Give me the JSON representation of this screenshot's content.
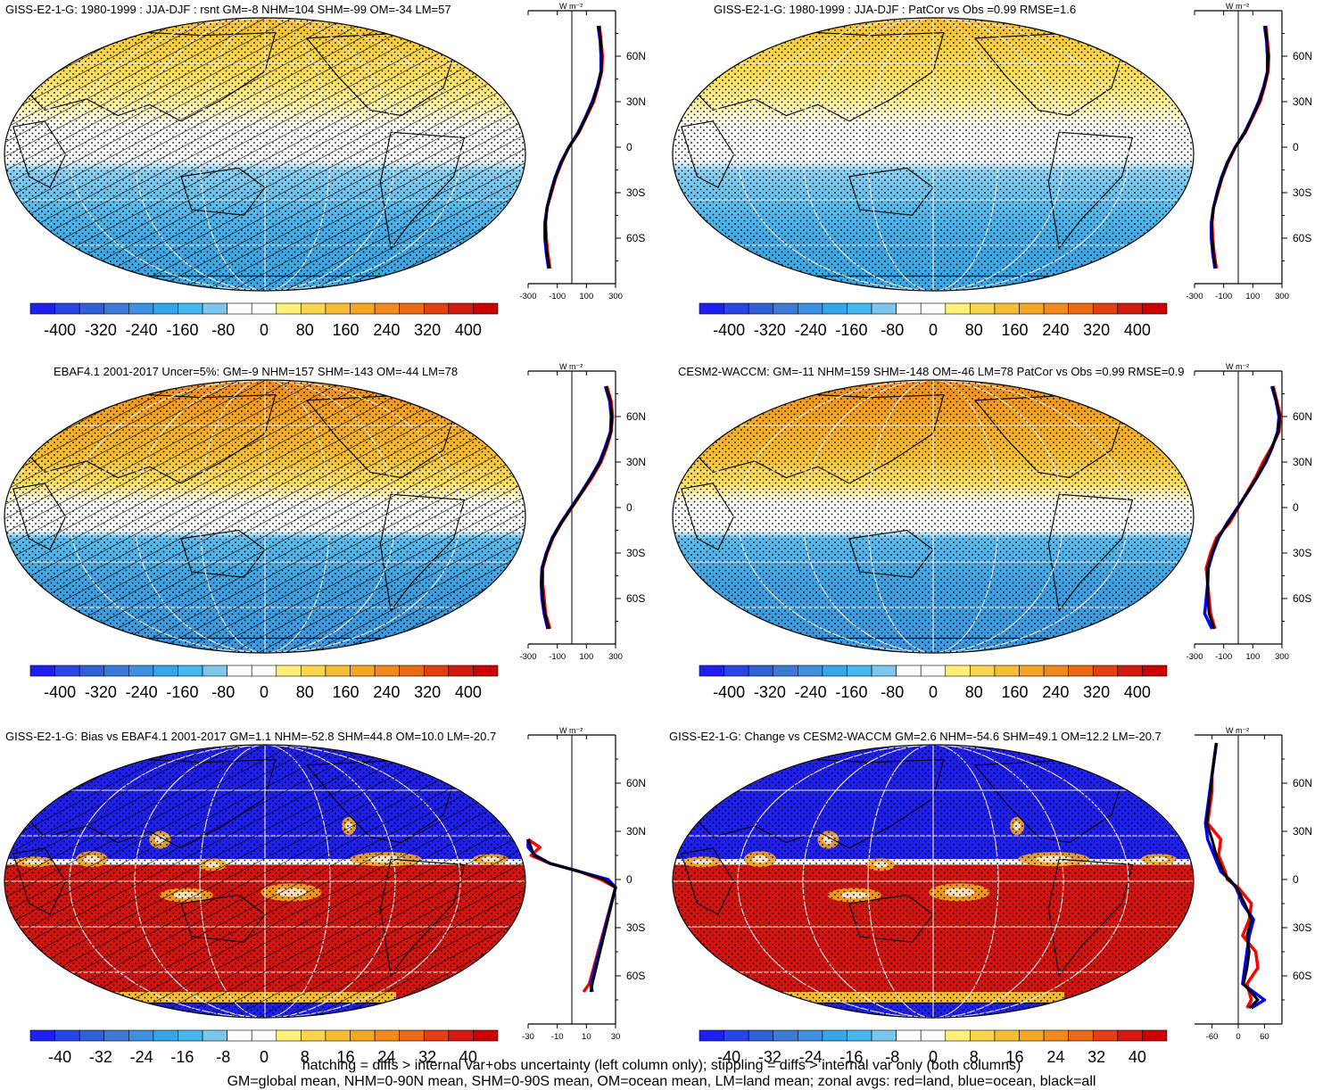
{
  "colors": {
    "land": "#ff0000",
    "ocean": "#0000ff",
    "all": "#000000",
    "abs_scale": [
      "#1f1ff0",
      "#2a45e6",
      "#3060d8",
      "#3c7ad6",
      "#3f90e0",
      "#35a6ea",
      "#45b6ee",
      "#7cc6ee",
      "#ffffff",
      "#ffffff",
      "#fff07a",
      "#f8d54c",
      "#f6bd32",
      "#f5a623",
      "#f08a1c",
      "#ea6a16",
      "#e24012",
      "#d21a10",
      "#cc0000"
    ],
    "diff_scale": [
      "#1f1ff0",
      "#2a45e6",
      "#3060d8",
      "#3c7ad6",
      "#3f90e0",
      "#35a6ea",
      "#45b6ee",
      "#7cc6ee",
      "#ffffff",
      "#ffffff",
      "#fff07a",
      "#f8d54c",
      "#f6bd32",
      "#f5a623",
      "#f08a1c",
      "#ea6a16",
      "#e24012",
      "#d21a10",
      "#cc0000"
    ]
  },
  "footer": {
    "line1": "hatching = diffs > internal var+obs uncertainty (left column only); stippling = diffs > internal var only (both columns)",
    "line2": "GM=global mean, NHM=0-90N mean, SHM=0-90S mean, OM=ocean mean, LM=land mean; zonal avgs: red=land, blue=ocean, black=all"
  },
  "panels": [
    {
      "title": "GISS-E2-1-G: 1980-1999 : JJA-DJF : rsnt GM=-8 NHM=104 SHM=-99 OM=-34 LM=57",
      "map_kind": "absolute",
      "hatched": true,
      "stippled": true,
      "cbar_labels": [
        "-400",
        "-320",
        "-240",
        "-160",
        "-80",
        "0",
        "80",
        "160",
        "240",
        "320",
        "400"
      ],
      "zonal_unit": "W m⁻²",
      "zonal_ticks": [
        "-300",
        "-100",
        "100",
        "300"
      ],
      "lat_labels": [
        "60N",
        "30N",
        "0",
        "30S",
        "60S"
      ]
    },
    {
      "title": "GISS-E2-1-G: 1980-1999 : JJA-DJF : PatCor vs Obs =0.99 RMSE=1.6",
      "map_kind": "absolute",
      "hatched": false,
      "stippled": true,
      "cbar_labels": [
        "-400",
        "-320",
        "-240",
        "-160",
        "-80",
        "0",
        "80",
        "160",
        "240",
        "320",
        "400"
      ],
      "zonal_unit": "W m⁻²",
      "zonal_ticks": [
        "-300",
        "-100",
        "100",
        "300"
      ],
      "lat_labels": [
        "60N",
        "30N",
        "0",
        "30S",
        "60S"
      ]
    },
    {
      "title": "EBAF4.1 2001-2017 Uncer=5%: GM=-9 NHM=157 SHM=-143 OM=-44 LM=78",
      "map_kind": "absolute",
      "hatched": true,
      "stippled": true,
      "cbar_labels": [
        "-400",
        "-320",
        "-240",
        "-160",
        "-80",
        "0",
        "80",
        "160",
        "240",
        "320",
        "400"
      ],
      "zonal_unit": "W m⁻²",
      "zonal_ticks": [
        "-300",
        "-100",
        "100",
        "300"
      ],
      "lat_labels": [
        "60N",
        "30N",
        "0",
        "30S",
        "60S"
      ]
    },
    {
      "title": "CESM2-WACCM: GM=-11 NHM=159 SHM=-148 OM=-46 LM=78 PatCor vs Obs =0.99 RMSE=0.9",
      "map_kind": "absolute",
      "hatched": false,
      "stippled": true,
      "cbar_labels": [
        "-400",
        "-320",
        "-240",
        "-160",
        "-80",
        "0",
        "80",
        "160",
        "240",
        "320",
        "400"
      ],
      "zonal_unit": "W m⁻²",
      "zonal_ticks": [
        "-300",
        "-100",
        "100",
        "300"
      ],
      "lat_labels": [
        "60N",
        "30N",
        "0",
        "30S",
        "60S"
      ]
    },
    {
      "title": "GISS-E2-1-G: Bias vs EBAF4.1 2001-2017 GM=1.1 NHM=-52.8 SHM=44.8 OM=10.0 LM=-20.7",
      "map_kind": "difference",
      "hatched": true,
      "stippled": true,
      "cbar_labels": [
        "-40",
        "-32",
        "-24",
        "-16",
        "-8",
        "0",
        "8",
        "16",
        "24",
        "32",
        "40"
      ],
      "zonal_unit": "W m⁻²",
      "zonal_ticks": [
        "-30",
        "-10",
        "10",
        "30"
      ],
      "lat_labels": [
        "60N",
        "30N",
        "0",
        "30S",
        "60S"
      ]
    },
    {
      "title": "GISS-E2-1-G: Change vs CESM2-WACCM GM=2.6 NHM=-54.6 SHM=49.1 OM=12.2 LM=-20.7",
      "map_kind": "difference",
      "hatched": false,
      "stippled": true,
      "cbar_labels": [
        "-40",
        "-32",
        "-24",
        "-16",
        "-8",
        "0",
        "8",
        "16",
        "24",
        "32",
        "40"
      ],
      "zonal_unit": "W m⁻²",
      "zonal_ticks": [
        "-60",
        "0",
        "60"
      ],
      "lat_labels": [
        "60N",
        "30N",
        "0",
        "30S",
        "60S"
      ]
    }
  ],
  "chart_data": [
    {
      "type": "heatmap",
      "title": "GISS-E2-1-G: 1980-1999 : JJA-DJF : rsnt GM=-8 NHM=104 SHM=-99 OM=-34 LM=57",
      "colorbar_ticks": [
        -400,
        -320,
        -240,
        -160,
        -80,
        0,
        80,
        160,
        240,
        320,
        400
      ],
      "zonal_mean": {
        "xlim": [
          -300,
          300
        ],
        "x_ticks": [
          -300,
          -100,
          100,
          300
        ],
        "y_ticks": [
          "60N",
          "30N",
          "0",
          "30S",
          "60S"
        ],
        "lat": [
          80,
          70,
          60,
          50,
          40,
          30,
          20,
          10,
          0,
          -10,
          -20,
          -30,
          -40,
          -50,
          -60,
          -70,
          -80
        ],
        "series": [
          {
            "name": "land",
            "values": [
              190,
              200,
              210,
              205,
              180,
              150,
              100,
              50,
              -20,
              -70,
              -110,
              -140,
              -170,
              -180,
              -175,
              -165,
              -150
            ]
          },
          {
            "name": "ocean",
            "values": [
              180,
              195,
              200,
              200,
              175,
              140,
              95,
              45,
              -20,
              -75,
              -115,
              -145,
              -170,
              -185,
              -185,
              -175,
              -160
            ]
          },
          {
            "name": "all",
            "values": [
              185,
              198,
              205,
              202,
              178,
              145,
              98,
              48,
              -20,
              -72,
              -112,
              -143,
              -170,
              -182,
              -180,
              -170,
              -155
            ]
          }
        ]
      }
    },
    {
      "type": "heatmap",
      "title": "GISS-E2-1-G: 1980-1999 : JJA-DJF : PatCor vs Obs =0.99 RMSE=1.6",
      "colorbar_ticks": [
        -400,
        -320,
        -240,
        -160,
        -80,
        0,
        80,
        160,
        240,
        320,
        400
      ],
      "zonal_mean": {
        "xlim": [
          -300,
          300
        ],
        "x_ticks": [
          -300,
          -100,
          100,
          300
        ],
        "y_ticks": [
          "60N",
          "30N",
          "0",
          "30S",
          "60S"
        ],
        "lat": [
          80,
          70,
          60,
          50,
          40,
          30,
          20,
          10,
          0,
          -10,
          -20,
          -30,
          -40,
          -50,
          -60,
          -70,
          -80
        ],
        "series": [
          {
            "name": "land",
            "values": [
              190,
              200,
              210,
              205,
              180,
              150,
              100,
              50,
              -20,
              -70,
              -110,
              -140,
              -170,
              -180,
              -175,
              -165,
              -150
            ]
          },
          {
            "name": "ocean",
            "values": [
              180,
              195,
              200,
              200,
              175,
              140,
              95,
              45,
              -20,
              -75,
              -115,
              -145,
              -170,
              -185,
              -185,
              -175,
              -160
            ]
          },
          {
            "name": "all",
            "values": [
              185,
              198,
              205,
              202,
              178,
              145,
              98,
              48,
              -20,
              -72,
              -112,
              -143,
              -170,
              -182,
              -180,
              -170,
              -155
            ]
          }
        ]
      }
    },
    {
      "type": "heatmap",
      "title": "EBAF4.1 2001-2017 Uncer=5%: GM=-9 NHM=157 SHM=-143 OM=-44 LM=78",
      "colorbar_ticks": [
        -400,
        -320,
        -240,
        -160,
        -80,
        0,
        80,
        160,
        240,
        320,
        400
      ],
      "zonal_mean": {
        "xlim": [
          -300,
          300
        ],
        "x_ticks": [
          -300,
          -100,
          100,
          300
        ],
        "y_ticks": [
          "60N",
          "30N",
          "0",
          "30S",
          "60S"
        ],
        "lat": [
          80,
          70,
          60,
          50,
          40,
          30,
          20,
          10,
          0,
          -10,
          -20,
          -30,
          -40,
          -50,
          -60,
          -70,
          -80
        ],
        "series": [
          {
            "name": "land",
            "values": [
              240,
              270,
              280,
              270,
              240,
              200,
              140,
              70,
              0,
              -70,
              -130,
              -170,
              -200,
              -200,
              -190,
              -180,
              -150
            ]
          },
          {
            "name": "ocean",
            "values": [
              230,
              260,
              270,
              265,
              230,
              190,
              130,
              65,
              -5,
              -75,
              -135,
              -175,
              -205,
              -210,
              -205,
              -190,
              -165
            ]
          },
          {
            "name": "all",
            "values": [
              235,
              265,
              275,
              268,
              235,
              195,
              135,
              68,
              -2,
              -72,
              -132,
              -172,
              -202,
              -205,
              -198,
              -185,
              -158
            ]
          }
        ]
      }
    },
    {
      "type": "heatmap",
      "title": "CESM2-WACCM: GM=-11 NHM=159 SHM=-148 OM=-46 LM=78 PatCor vs Obs =0.99 RMSE=0.9",
      "colorbar_ticks": [
        -400,
        -320,
        -240,
        -160,
        -80,
        0,
        80,
        160,
        240,
        320,
        400
      ],
      "zonal_mean": {
        "xlim": [
          -300,
          300
        ],
        "x_ticks": [
          -300,
          -100,
          100,
          300
        ],
        "y_ticks": [
          "60N",
          "30N",
          "0",
          "30S",
          "60S"
        ],
        "lat": [
          80,
          70,
          60,
          50,
          40,
          30,
          20,
          10,
          0,
          -10,
          -20,
          -30,
          -40,
          -50,
          -60,
          -70,
          -80
        ],
        "series": [
          {
            "name": "land",
            "values": [
              240,
              265,
              290,
              280,
              230,
              170,
              120,
              60,
              0,
              -60,
              -150,
              -190,
              -220,
              -210,
              -200,
              -190,
              -160
            ]
          },
          {
            "name": "ocean",
            "values": [
              230,
              260,
              280,
              270,
              235,
              190,
              130,
              65,
              -5,
              -75,
              -135,
              -175,
              -205,
              -210,
              -220,
              -230,
              -180
            ]
          },
          {
            "name": "all",
            "values": [
              235,
              262,
              285,
              275,
              232,
              185,
              128,
              63,
              -2,
              -70,
              -140,
              -180,
              -210,
              -210,
              -208,
              -200,
              -165
            ]
          }
        ]
      }
    },
    {
      "type": "heatmap",
      "title": "GISS-E2-1-G: Bias vs EBAF4.1 2001-2017 GM=1.1 NHM=-52.8 SHM=44.8 OM=10.0 LM=-20.7",
      "colorbar_ticks": [
        -40,
        -32,
        -24,
        -16,
        -8,
        0,
        8,
        16,
        24,
        32,
        40
      ],
      "zonal_mean": {
        "xlim": [
          -30,
          30
        ],
        "x_ticks": [
          -30,
          -10,
          10,
          30
        ],
        "y_ticks": [
          "60N",
          "30N",
          "0",
          "30S",
          "60S"
        ],
        "lat": [
          25,
          20,
          15,
          10,
          5,
          0,
          -5,
          -65,
          -70
        ],
        "series": [
          {
            "name": "land",
            "values": [
              -30,
              -22,
              -28,
              -15,
              5,
              20,
              30,
              12,
              8
            ]
          },
          {
            "name": "ocean",
            "values": [
              -30,
              -30,
              -25,
              -15,
              5,
              25,
              30,
              13,
              14
            ]
          },
          {
            "name": "all",
            "values": [
              -30,
              -28,
              -26,
              -15,
              5,
              22,
              30,
              14,
              13
            ]
          }
        ]
      }
    },
    {
      "type": "heatmap",
      "title": "GISS-E2-1-G: Change vs CESM2-WACCM GM=2.6 NHM=-54.6 SHM=49.1 OM=12.2 LM=-20.7",
      "colorbar_ticks": [
        -40,
        -32,
        -24,
        -16,
        -8,
        0,
        8,
        16,
        24,
        32,
        40
      ],
      "zonal_mean": {
        "xlim": [
          -100,
          100
        ],
        "x_ticks": [
          -60,
          0,
          60
        ],
        "y_ticks": [
          "60N",
          "30N",
          "0",
          "30S",
          "60S"
        ],
        "lat": [
          85,
          75,
          65,
          55,
          45,
          35,
          25,
          15,
          5,
          0,
          -5,
          -15,
          -25,
          -35,
          -45,
          -55,
          -65,
          -75,
          -80
        ],
        "series": [
          {
            "name": "land",
            "values": [
              -50,
              -55,
              -60,
              -60,
              -65,
              -70,
              -40,
              -45,
              -30,
              -25,
              0,
              30,
              25,
              10,
              40,
              45,
              20,
              30,
              20
            ]
          },
          {
            "name": "ocean",
            "values": [
              -50,
              -55,
              -60,
              -65,
              -70,
              -75,
              -70,
              -55,
              -40,
              -20,
              -5,
              10,
              35,
              25,
              20,
              15,
              10,
              60,
              30
            ]
          },
          {
            "name": "all",
            "values": [
              -50,
              -55,
              -60,
              -63,
              -68,
              -72,
              -60,
              -50,
              -35,
              -22,
              -3,
              15,
              30,
              20,
              25,
              20,
              12,
              45,
              25
            ]
          }
        ]
      }
    }
  ]
}
